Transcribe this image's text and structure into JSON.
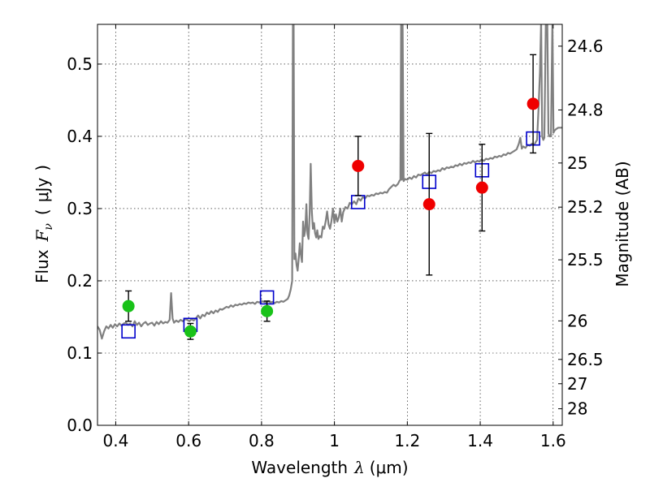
{
  "chart_data": {
    "type": "scatter",
    "title": "",
    "xlabel": {
      "text": "Wavelength",
      "symbol": "λ",
      "unit": "(μm)"
    },
    "ylabel": {
      "text": "Flux",
      "symbol": "F",
      "subscript": "ν",
      "open": "(",
      "unit": "μJy",
      "close": ")"
    },
    "y2label": "Magnitude (AB)",
    "xlim": [
      0.35,
      1.625
    ],
    "ylim": [
      0.0,
      0.555
    ],
    "grid": true,
    "xticks": [
      {
        "v": 0.4,
        "label": "0.4"
      },
      {
        "v": 0.6,
        "label": "0.6"
      },
      {
        "v": 0.8,
        "label": "0.8"
      },
      {
        "v": 1.0,
        "label": "1"
      },
      {
        "v": 1.2,
        "label": "1.2"
      },
      {
        "v": 1.4,
        "label": "1.4"
      },
      {
        "v": 1.6,
        "label": "1.6"
      }
    ],
    "yticks": [
      {
        "v": 0.0,
        "label": "0.0"
      },
      {
        "v": 0.1,
        "label": "0.1"
      },
      {
        "v": 0.2,
        "label": "0.2"
      },
      {
        "v": 0.3,
        "label": "0.3"
      },
      {
        "v": 0.4,
        "label": "0.4"
      },
      {
        "v": 0.5,
        "label": "0.5"
      }
    ],
    "y2ticks": [
      {
        "mag": 24.6,
        "label": "24.6"
      },
      {
        "mag": 24.8,
        "label": "24.8"
      },
      {
        "mag": 25.0,
        "label": "25"
      },
      {
        "mag": 25.2,
        "label": "25.2"
      },
      {
        "mag": 25.5,
        "label": "25.5"
      },
      {
        "mag": 26.0,
        "label": "26"
      },
      {
        "mag": 26.5,
        "label": "26.5"
      },
      {
        "mag": 27.0,
        "label": "27"
      },
      {
        "mag": 28.0,
        "label": "28"
      }
    ],
    "colors": {
      "spectrum": "#808080",
      "observed_optical": "#19c219",
      "observed_nir": "#ef0000",
      "model": "#0000cc",
      "errorbar": "#000000"
    },
    "series": [
      {
        "name": "model spectrum",
        "kind": "line",
        "points": [
          [
            0.35,
            0.137
          ],
          [
            0.356,
            0.132
          ],
          [
            0.362,
            0.12
          ],
          [
            0.368,
            0.13
          ],
          [
            0.374,
            0.137
          ],
          [
            0.38,
            0.134
          ],
          [
            0.386,
            0.139
          ],
          [
            0.392,
            0.135
          ],
          [
            0.398,
            0.14
          ],
          [
            0.404,
            0.137
          ],
          [
            0.41,
            0.141
          ],
          [
            0.416,
            0.138
          ],
          [
            0.422,
            0.141
          ],
          [
            0.428,
            0.142
          ],
          [
            0.434,
            0.139
          ],
          [
            0.44,
            0.141
          ],
          [
            0.446,
            0.137
          ],
          [
            0.452,
            0.144
          ],
          [
            0.458,
            0.139
          ],
          [
            0.464,
            0.142
          ],
          [
            0.47,
            0.137
          ],
          [
            0.476,
            0.141
          ],
          [
            0.482,
            0.143
          ],
          [
            0.488,
            0.139
          ],
          [
            0.494,
            0.141
          ],
          [
            0.5,
            0.142
          ],
          [
            0.506,
            0.138
          ],
          [
            0.512,
            0.143
          ],
          [
            0.518,
            0.14
          ],
          [
            0.524,
            0.144
          ],
          [
            0.53,
            0.141
          ],
          [
            0.536,
            0.143
          ],
          [
            0.542,
            0.142
          ],
          [
            0.548,
            0.146
          ],
          [
            0.552,
            0.183
          ],
          [
            0.556,
            0.148
          ],
          [
            0.56,
            0.142
          ],
          [
            0.566,
            0.145
          ],
          [
            0.572,
            0.143
          ],
          [
            0.578,
            0.146
          ],
          [
            0.584,
            0.144
          ],
          [
            0.59,
            0.147
          ],
          [
            0.596,
            0.146
          ],
          [
            0.602,
            0.144
          ],
          [
            0.608,
            0.147
          ],
          [
            0.614,
            0.145
          ],
          [
            0.62,
            0.148
          ],
          [
            0.626,
            0.152
          ],
          [
            0.632,
            0.148
          ],
          [
            0.638,
            0.153
          ],
          [
            0.644,
            0.151
          ],
          [
            0.65,
            0.156
          ],
          [
            0.656,
            0.154
          ],
          [
            0.662,
            0.158
          ],
          [
            0.668,
            0.155
          ],
          [
            0.674,
            0.159
          ],
          [
            0.68,
            0.157
          ],
          [
            0.686,
            0.161
          ],
          [
            0.692,
            0.16
          ],
          [
            0.698,
            0.162
          ],
          [
            0.704,
            0.164
          ],
          [
            0.71,
            0.163
          ],
          [
            0.716,
            0.166
          ],
          [
            0.722,
            0.164
          ],
          [
            0.728,
            0.167
          ],
          [
            0.734,
            0.166
          ],
          [
            0.74,
            0.168
          ],
          [
            0.746,
            0.167
          ],
          [
            0.752,
            0.169
          ],
          [
            0.758,
            0.168
          ],
          [
            0.764,
            0.17
          ],
          [
            0.77,
            0.169
          ],
          [
            0.776,
            0.17
          ],
          [
            0.782,
            0.168
          ],
          [
            0.788,
            0.171
          ],
          [
            0.794,
            0.17
          ],
          [
            0.8,
            0.172
          ],
          [
            0.806,
            0.171
          ],
          [
            0.812,
            0.17
          ],
          [
            0.818,
            0.172
          ],
          [
            0.824,
            0.17
          ],
          [
            0.83,
            0.171
          ],
          [
            0.836,
            0.169
          ],
          [
            0.842,
            0.171
          ],
          [
            0.848,
            0.17
          ],
          [
            0.854,
            0.172
          ],
          [
            0.86,
            0.171
          ],
          [
            0.866,
            0.173
          ],
          [
            0.872,
            0.175
          ],
          [
            0.876,
            0.18
          ],
          [
            0.88,
            0.188
          ],
          [
            0.884,
            0.2
          ],
          [
            0.886,
            0.56
          ],
          [
            0.888,
            0.56
          ],
          [
            0.89,
            0.23
          ],
          [
            0.893,
            0.238
          ],
          [
            0.896,
            0.222
          ],
          [
            0.899,
            0.214
          ],
          [
            0.902,
            0.23
          ],
          [
            0.905,
            0.252
          ],
          [
            0.908,
            0.236
          ],
          [
            0.911,
            0.226
          ],
          [
            0.914,
            0.282
          ],
          [
            0.917,
            0.262
          ],
          [
            0.92,
            0.27
          ],
          [
            0.923,
            0.306
          ],
          [
            0.926,
            0.265
          ],
          [
            0.929,
            0.258
          ],
          [
            0.932,
            0.292
          ],
          [
            0.935,
            0.362
          ],
          [
            0.938,
            0.296
          ],
          [
            0.941,
            0.272
          ],
          [
            0.944,
            0.28
          ],
          [
            0.947,
            0.266
          ],
          [
            0.95,
            0.26
          ],
          [
            0.953,
            0.27
          ],
          [
            0.956,
            0.258
          ],
          [
            0.96,
            0.262
          ],
          [
            0.964,
            0.26
          ],
          [
            0.968,
            0.275
          ],
          [
            0.972,
            0.272
          ],
          [
            0.976,
            0.282
          ],
          [
            0.98,
            0.296
          ],
          [
            0.984,
            0.278
          ],
          [
            0.988,
            0.272
          ],
          [
            0.992,
            0.283
          ],
          [
            0.996,
            0.3
          ],
          [
            1.0,
            0.28
          ],
          [
            1.004,
            0.292
          ],
          [
            1.008,
            0.282
          ],
          [
            1.012,
            0.288
          ],
          [
            1.016,
            0.3
          ],
          [
            1.02,
            0.282
          ],
          [
            1.024,
            0.295
          ],
          [
            1.03,
            0.302
          ],
          [
            1.036,
            0.3
          ],
          [
            1.042,
            0.308
          ],
          [
            1.048,
            0.306
          ],
          [
            1.054,
            0.31
          ],
          [
            1.06,
            0.306
          ],
          [
            1.066,
            0.314
          ],
          [
            1.072,
            0.311
          ],
          [
            1.078,
            0.316
          ],
          [
            1.084,
            0.314
          ],
          [
            1.09,
            0.318
          ],
          [
            1.096,
            0.317
          ],
          [
            1.102,
            0.319
          ],
          [
            1.108,
            0.318
          ],
          [
            1.114,
            0.321
          ],
          [
            1.12,
            0.32
          ],
          [
            1.126,
            0.322
          ],
          [
            1.132,
            0.321
          ],
          [
            1.138,
            0.323
          ],
          [
            1.144,
            0.322
          ],
          [
            1.15,
            0.327
          ],
          [
            1.156,
            0.33
          ],
          [
            1.162,
            0.333
          ],
          [
            1.168,
            0.331
          ],
          [
            1.174,
            0.334
          ],
          [
            1.178,
            0.338
          ],
          [
            1.181,
            0.34
          ],
          [
            1.183,
            0.56
          ],
          [
            1.185,
            0.34
          ],
          [
            1.187,
            0.56
          ],
          [
            1.19,
            0.338
          ],
          [
            1.194,
            0.341
          ],
          [
            1.2,
            0.34
          ],
          [
            1.206,
            0.343
          ],
          [
            1.212,
            0.341
          ],
          [
            1.218,
            0.345
          ],
          [
            1.224,
            0.343
          ],
          [
            1.23,
            0.347
          ],
          [
            1.236,
            0.346
          ],
          [
            1.242,
            0.348
          ],
          [
            1.248,
            0.35
          ],
          [
            1.254,
            0.347
          ],
          [
            1.26,
            0.351
          ],
          [
            1.266,
            0.349
          ],
          [
            1.272,
            0.352
          ],
          [
            1.278,
            0.351
          ],
          [
            1.284,
            0.353
          ],
          [
            1.29,
            0.352
          ],
          [
            1.296,
            0.356
          ],
          [
            1.302,
            0.354
          ],
          [
            1.308,
            0.357
          ],
          [
            1.314,
            0.356
          ],
          [
            1.32,
            0.358
          ],
          [
            1.326,
            0.357
          ],
          [
            1.332,
            0.36
          ],
          [
            1.338,
            0.359
          ],
          [
            1.344,
            0.362
          ],
          [
            1.35,
            0.36
          ],
          [
            1.356,
            0.363
          ],
          [
            1.362,
            0.362
          ],
          [
            1.368,
            0.364
          ],
          [
            1.374,
            0.363
          ],
          [
            1.38,
            0.366
          ],
          [
            1.386,
            0.364
          ],
          [
            1.392,
            0.366
          ],
          [
            1.398,
            0.365
          ],
          [
            1.404,
            0.368
          ],
          [
            1.41,
            0.366
          ],
          [
            1.416,
            0.369
          ],
          [
            1.422,
            0.368
          ],
          [
            1.428,
            0.37
          ],
          [
            1.434,
            0.369
          ],
          [
            1.44,
            0.372
          ],
          [
            1.446,
            0.371
          ],
          [
            1.452,
            0.373
          ],
          [
            1.458,
            0.372
          ],
          [
            1.464,
            0.375
          ],
          [
            1.47,
            0.374
          ],
          [
            1.476,
            0.377
          ],
          [
            1.482,
            0.376
          ],
          [
            1.488,
            0.378
          ],
          [
            1.494,
            0.38
          ],
          [
            1.5,
            0.382
          ],
          [
            1.506,
            0.39
          ],
          [
            1.51,
            0.398
          ],
          [
            1.514,
            0.383
          ],
          [
            1.518,
            0.386
          ],
          [
            1.524,
            0.384
          ],
          [
            1.53,
            0.388
          ],
          [
            1.536,
            0.387
          ],
          [
            1.542,
            0.39
          ],
          [
            1.548,
            0.388
          ],
          [
            1.552,
            0.392
          ],
          [
            1.556,
            0.395
          ],
          [
            1.56,
            0.438
          ],
          [
            1.564,
            0.49
          ],
          [
            1.567,
            0.56
          ],
          [
            1.57,
            0.4
          ],
          [
            1.573,
            0.395
          ],
          [
            1.576,
            0.398
          ],
          [
            1.58,
            0.56
          ],
          [
            1.584,
            0.56
          ],
          [
            1.587,
            0.404
          ],
          [
            1.59,
            0.4
          ],
          [
            1.594,
            0.4
          ],
          [
            1.598,
            0.56
          ],
          [
            1.601,
            0.405
          ],
          [
            1.604,
            0.408
          ],
          [
            1.608,
            0.41
          ],
          [
            1.614,
            0.412
          ],
          [
            1.625,
            0.412
          ]
        ]
      },
      {
        "name": "observed optical",
        "kind": "points",
        "points": [
          {
            "x": 0.435,
            "y": 0.165,
            "err": 0.021
          },
          {
            "x": 0.605,
            "y": 0.13,
            "err": 0.011
          },
          {
            "x": 0.815,
            "y": 0.158,
            "err": 0.014
          }
        ]
      },
      {
        "name": "observed near-infrared",
        "kind": "points",
        "points": [
          {
            "x": 1.065,
            "y": 0.359,
            "err": 0.041
          },
          {
            "x": 1.26,
            "y": 0.306,
            "err": 0.098
          },
          {
            "x": 1.405,
            "y": 0.329,
            "err": 0.06
          },
          {
            "x": 1.545,
            "y": 0.445,
            "err": 0.068
          }
        ]
      },
      {
        "name": "model synthetic photometry",
        "kind": "squares",
        "points": [
          {
            "x": 0.435,
            "y": 0.13
          },
          {
            "x": 0.605,
            "y": 0.139
          },
          {
            "x": 0.815,
            "y": 0.177
          },
          {
            "x": 1.065,
            "y": 0.309
          },
          {
            "x": 1.26,
            "y": 0.337
          },
          {
            "x": 1.405,
            "y": 0.353
          },
          {
            "x": 1.545,
            "y": 0.397
          }
        ]
      }
    ]
  }
}
